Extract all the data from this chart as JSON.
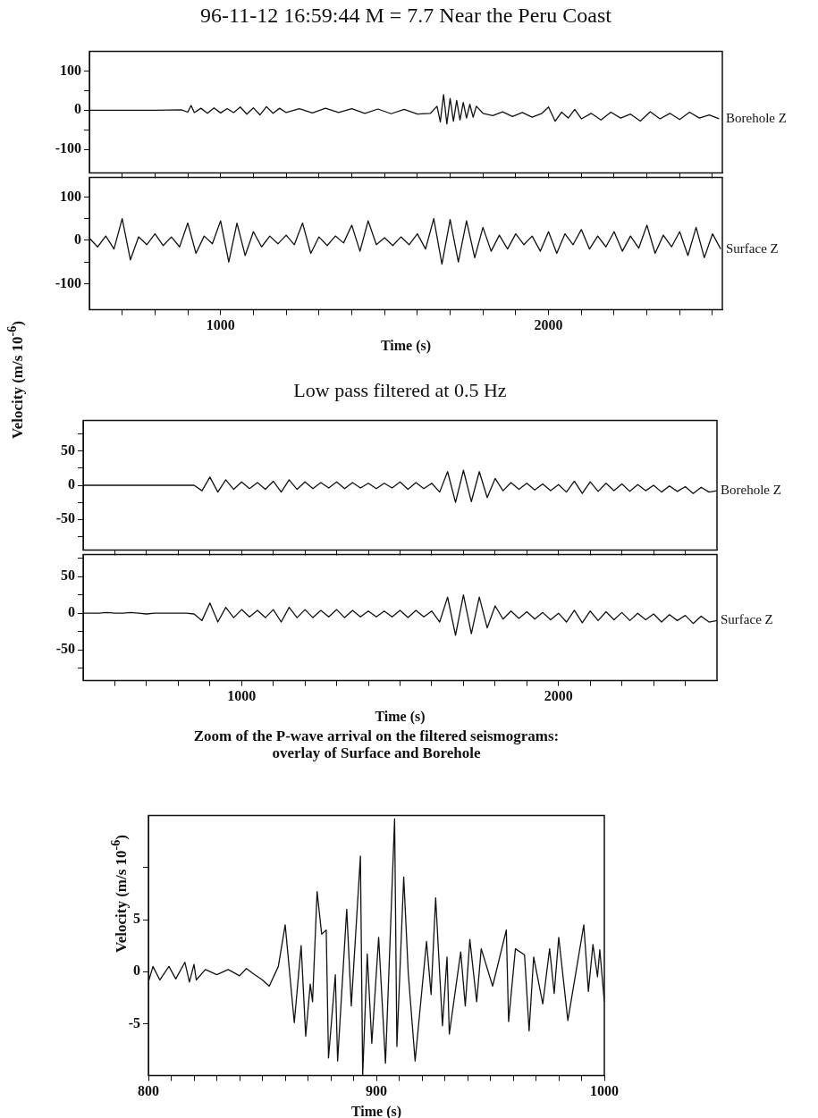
{
  "chart_data": [
    {
      "type": "line",
      "title": "96-11-12 16:59:44 M = 7.7 Near the Peru Coast",
      "grid": false,
      "legend": false,
      "tick_labels": "y",
      "xlim": [
        600,
        2530
      ],
      "ylim": [
        -160,
        150
      ],
      "xticks": [
        {
          "value": 700,
          "label": null
        },
        {
          "value": 800,
          "label": null
        },
        {
          "value": 900,
          "label": null
        },
        {
          "value": 1000,
          "label": null
        },
        {
          "value": 1100,
          "label": null
        },
        {
          "value": 1200,
          "label": null
        },
        {
          "value": 1300,
          "label": null
        },
        {
          "value": 1400,
          "label": null
        },
        {
          "value": 1500,
          "label": null
        },
        {
          "value": 1600,
          "label": null
        },
        {
          "value": 1700,
          "label": null
        },
        {
          "value": 1800,
          "label": null
        },
        {
          "value": 1900,
          "label": null
        },
        {
          "value": 2000,
          "label": null
        },
        {
          "value": 2100,
          "label": null
        },
        {
          "value": 2200,
          "label": null
        },
        {
          "value": 2300,
          "label": null
        },
        {
          "value": 2400,
          "label": null
        },
        {
          "value": 2500,
          "label": null
        }
      ],
      "yticks": [
        -100,
        {
          "value": -50,
          "label": null
        },
        0,
        {
          "value": 50,
          "label": null
        },
        100
      ],
      "x": [
        600,
        700,
        800,
        880,
        900,
        910,
        920,
        940,
        960,
        980,
        1000,
        1020,
        1040,
        1060,
        1080,
        1100,
        1120,
        1140,
        1160,
        1180,
        1200,
        1240,
        1280,
        1320,
        1360,
        1400,
        1440,
        1480,
        1520,
        1560,
        1600,
        1640,
        1660,
        1670,
        1680,
        1690,
        1700,
        1710,
        1720,
        1730,
        1740,
        1750,
        1760,
        1770,
        1780,
        1800,
        1830,
        1860,
        1890,
        1920,
        1950,
        1980,
        2000,
        2020,
        2040,
        2060,
        2080,
        2100,
        2130,
        2160,
        2190,
        2220,
        2250,
        2280,
        2310,
        2340,
        2370,
        2400,
        2430,
        2460,
        2490,
        2520
      ],
      "series": [
        {
          "name": "Borehole Z",
          "color": "#111111",
          "values": [
            0,
            0,
            0,
            1,
            -5,
            12,
            -6,
            5,
            -8,
            6,
            -7,
            4,
            -6,
            8,
            -10,
            6,
            -12,
            9,
            -8,
            5,
            -6,
            4,
            -7,
            5,
            -6,
            4,
            -8,
            3,
            -9,
            2,
            -10,
            -8,
            10,
            -30,
            40,
            -35,
            30,
            -28,
            25,
            -25,
            20,
            -20,
            15,
            -18,
            10,
            -8,
            -14,
            -4,
            -16,
            -6,
            -18,
            -8,
            8,
            -28,
            -5,
            -20,
            2,
            -22,
            -8,
            -25,
            -5,
            -20,
            -10,
            -28,
            -4,
            -22,
            -8,
            -24,
            -5,
            -20,
            -12,
            -22
          ]
        }
      ]
    },
    {
      "type": "line",
      "xlabel": "Time (s)",
      "grid": false,
      "legend": false,
      "xlim": [
        600,
        2530
      ],
      "ylim": [
        -160,
        145
      ],
      "xticks": [
        {
          "value": 700,
          "label": null
        },
        {
          "value": 800,
          "label": null
        },
        {
          "value": 900,
          "label": null
        },
        1000,
        {
          "value": 1100,
          "label": null
        },
        {
          "value": 1200,
          "label": null
        },
        {
          "value": 1300,
          "label": null
        },
        {
          "value": 1400,
          "label": null
        },
        {
          "value": 1500,
          "label": null
        },
        {
          "value": 1600,
          "label": null
        },
        {
          "value": 1700,
          "label": null
        },
        {
          "value": 1800,
          "label": null
        },
        {
          "value": 1900,
          "label": null
        },
        2000,
        {
          "value": 2100,
          "label": null
        },
        {
          "value": 2200,
          "label": null
        },
        {
          "value": 2300,
          "label": null
        },
        {
          "value": 2400,
          "label": null
        },
        {
          "value": 2500,
          "label": null
        }
      ],
      "yticks": [
        -100,
        {
          "value": -50,
          "label": null
        },
        0,
        {
          "value": 50,
          "label": null
        },
        100
      ],
      "x": [
        600,
        625,
        650,
        675,
        700,
        725,
        750,
        775,
        800,
        825,
        850,
        875,
        900,
        925,
        950,
        975,
        1000,
        1025,
        1050,
        1075,
        1100,
        1125,
        1150,
        1175,
        1200,
        1225,
        1250,
        1275,
        1300,
        1325,
        1350,
        1375,
        1400,
        1425,
        1450,
        1475,
        1500,
        1525,
        1550,
        1575,
        1600,
        1625,
        1650,
        1675,
        1700,
        1725,
        1750,
        1775,
        1800,
        1825,
        1850,
        1875,
        1900,
        1925,
        1950,
        1975,
        2000,
        2025,
        2050,
        2075,
        2100,
        2125,
        2150,
        2175,
        2200,
        2225,
        2250,
        2275,
        2300,
        2325,
        2350,
        2375,
        2400,
        2425,
        2450,
        2475,
        2500,
        2525
      ],
      "series": [
        {
          "name": "Surface Z",
          "color": "#111111",
          "values": [
            5,
            -15,
            10,
            -20,
            50,
            -45,
            8,
            -10,
            15,
            -12,
            8,
            -15,
            40,
            -30,
            10,
            -8,
            45,
            -50,
            40,
            -35,
            20,
            -15,
            10,
            -8,
            12,
            -10,
            40,
            -30,
            8,
            -12,
            10,
            -6,
            35,
            -25,
            45,
            -10,
            6,
            -12,
            8,
            -10,
            15,
            -20,
            50,
            -55,
            48,
            -50,
            45,
            -40,
            30,
            -25,
            12,
            -20,
            15,
            -10,
            10,
            -25,
            20,
            -30,
            15,
            -10,
            25,
            -20,
            10,
            -15,
            20,
            -25,
            10,
            -18,
            35,
            -30,
            12,
            -15,
            20,
            -35,
            30,
            -40,
            15,
            -20
          ]
        }
      ]
    },
    {
      "type": "line",
      "title": "Low pass filtered at 0.5 Hz",
      "ylabel": "Velocity (m/s 10$^{-6}$)",
      "grid": false,
      "legend": false,
      "tick_labels": "y",
      "xlim": [
        500,
        2500
      ],
      "ylim": [
        -95,
        95
      ],
      "xticks": [
        {
          "value": 600,
          "label": null
        },
        {
          "value": 700,
          "label": null
        },
        {
          "value": 800,
          "label": null
        },
        {
          "value": 900,
          "label": null
        },
        {
          "value": 1000,
          "label": null
        },
        {
          "value": 1100,
          "label": null
        },
        {
          "value": 1200,
          "label": null
        },
        {
          "value": 1300,
          "label": null
        },
        {
          "value": 1400,
          "label": null
        },
        {
          "value": 1500,
          "label": null
        },
        {
          "value": 1600,
          "label": null
        },
        {
          "value": 1700,
          "label": null
        },
        {
          "value": 1800,
          "label": null
        },
        {
          "value": 1900,
          "label": null
        },
        {
          "value": 2000,
          "label": null
        },
        {
          "value": 2100,
          "label": null
        },
        {
          "value": 2200,
          "label": null
        },
        {
          "value": 2300,
          "label": null
        },
        {
          "value": 2400,
          "label": null
        }
      ],
      "yticks": [
        {
          "value": -75,
          "label": null
        },
        -50,
        {
          "value": -25,
          "label": null
        },
        0,
        {
          "value": 25,
          "label": null
        },
        50,
        {
          "value": 75,
          "label": null
        }
      ],
      "x": [
        500,
        525,
        550,
        575,
        600,
        625,
        650,
        675,
        700,
        725,
        750,
        775,
        800,
        825,
        850,
        875,
        900,
        925,
        950,
        975,
        1000,
        1025,
        1050,
        1075,
        1100,
        1125,
        1150,
        1175,
        1200,
        1225,
        1250,
        1275,
        1300,
        1325,
        1350,
        1375,
        1400,
        1425,
        1450,
        1475,
        1500,
        1525,
        1550,
        1575,
        1600,
        1625,
        1650,
        1675,
        1700,
        1725,
        1750,
        1775,
        1800,
        1825,
        1850,
        1875,
        1900,
        1925,
        1950,
        1975,
        2000,
        2025,
        2050,
        2075,
        2100,
        2125,
        2150,
        2175,
        2200,
        2225,
        2250,
        2275,
        2300,
        2325,
        2350,
        2375,
        2400,
        2425,
        2450,
        2475,
        2500
      ],
      "series": [
        {
          "name": "Borehole Z",
          "color": "#111111",
          "values": [
            0,
            0,
            0,
            0,
            0,
            0,
            0,
            0,
            0,
            0,
            0,
            0,
            0,
            0,
            0,
            -8,
            12,
            -10,
            8,
            -6,
            5,
            -5,
            4,
            -6,
            6,
            -10,
            8,
            -6,
            5,
            -5,
            4,
            -4,
            5,
            -5,
            4,
            -4,
            3,
            -5,
            3,
            -4,
            5,
            -6,
            4,
            -5,
            3,
            -10,
            20,
            -25,
            22,
            -24,
            20,
            -18,
            10,
            -8,
            4,
            -6,
            3,
            -7,
            2,
            -8,
            1,
            -10,
            6,
            -12,
            5,
            -9,
            3,
            -8,
            2,
            -9,
            1,
            -8,
            0,
            -10,
            -1,
            -9,
            -2,
            -12,
            -3,
            -10,
            -8
          ]
        }
      ]
    },
    {
      "type": "line",
      "xlabel": "Time (s)",
      "grid": false,
      "legend": false,
      "xlim": [
        500,
        2500
      ],
      "ylim": [
        -92,
        80
      ],
      "xticks": [
        {
          "value": 600,
          "label": null
        },
        {
          "value": 700,
          "label": null
        },
        {
          "value": 800,
          "label": null
        },
        {
          "value": 900,
          "label": null
        },
        1000,
        {
          "value": 1100,
          "label": null
        },
        {
          "value": 1200,
          "label": null
        },
        {
          "value": 1300,
          "label": null
        },
        {
          "value": 1400,
          "label": null
        },
        {
          "value": 1500,
          "label": null
        },
        {
          "value": 1600,
          "label": null
        },
        {
          "value": 1700,
          "label": null
        },
        {
          "value": 1800,
          "label": null
        },
        {
          "value": 1900,
          "label": null
        },
        2000,
        {
          "value": 2100,
          "label": null
        },
        {
          "value": 2200,
          "label": null
        },
        {
          "value": 2300,
          "label": null
        },
        {
          "value": 2400,
          "label": null
        }
      ],
      "yticks": [
        {
          "value": -75,
          "label": null
        },
        -50,
        {
          "value": -25,
          "label": null
        },
        0,
        {
          "value": 25,
          "label": null
        },
        50,
        {
          "value": 75,
          "label": null
        }
      ],
      "x": [
        500,
        525,
        550,
        575,
        600,
        625,
        650,
        675,
        700,
        725,
        750,
        775,
        800,
        825,
        850,
        875,
        900,
        925,
        950,
        975,
        1000,
        1025,
        1050,
        1075,
        1100,
        1125,
        1150,
        1175,
        1200,
        1225,
        1250,
        1275,
        1300,
        1325,
        1350,
        1375,
        1400,
        1425,
        1450,
        1475,
        1500,
        1525,
        1550,
        1575,
        1600,
        1625,
        1650,
        1675,
        1700,
        1725,
        1750,
        1775,
        1800,
        1825,
        1850,
        1875,
        1900,
        1925,
        1950,
        1975,
        2000,
        2025,
        2050,
        2075,
        2100,
        2125,
        2150,
        2175,
        2200,
        2225,
        2250,
        2275,
        2300,
        2325,
        2350,
        2375,
        2400,
        2425,
        2450,
        2475,
        2500
      ],
      "series": [
        {
          "name": "Surface Z",
          "color": "#111111",
          "values": [
            0,
            0,
            0,
            1,
            0,
            0,
            1,
            0,
            -1,
            0,
            0,
            0,
            0,
            0,
            -1,
            -10,
            14,
            -12,
            8,
            -6,
            5,
            -5,
            4,
            -6,
            5,
            -12,
            8,
            -6,
            5,
            -6,
            4,
            -5,
            5,
            -6,
            4,
            -5,
            3,
            -5,
            3,
            -5,
            4,
            -6,
            4,
            -5,
            3,
            -12,
            22,
            -30,
            25,
            -28,
            22,
            -20,
            10,
            -8,
            3,
            -7,
            2,
            -8,
            1,
            -9,
            0,
            -12,
            4,
            -13,
            3,
            -10,
            2,
            -9,
            1,
            -10,
            0,
            -9,
            -1,
            -12,
            -2,
            -10,
            -3,
            -14,
            -4,
            -12,
            -10
          ]
        }
      ]
    },
    {
      "type": "line",
      "title": "Zoom of the P-wave arrival on the  filtered seismograms:",
      "subtitle": "overlay of Surface and Borehole",
      "xlabel": "Time (s)",
      "ylabel": "Velocity (m/s 10$^{-6}$)",
      "grid": false,
      "legend": false,
      "xlim": [
        800,
        1000
      ],
      "ylim": [
        -10,
        15
      ],
      "xticks": [
        800,
        {
          "value": 810,
          "label": null
        },
        {
          "value": 820,
          "label": null
        },
        {
          "value": 830,
          "label": null
        },
        {
          "value": 840,
          "label": null
        },
        {
          "value": 850,
          "label": null
        },
        {
          "value": 860,
          "label": null
        },
        {
          "value": 870,
          "label": null
        },
        {
          "value": 880,
          "label": null
        },
        {
          "value": 890,
          "label": null
        },
        900,
        {
          "value": 910,
          "label": null
        },
        {
          "value": 920,
          "label": null
        },
        {
          "value": 930,
          "label": null
        },
        {
          "value": 940,
          "label": null
        },
        {
          "value": 950,
          "label": null
        },
        {
          "value": 960,
          "label": null
        },
        {
          "value": 970,
          "label": null
        },
        {
          "value": 980,
          "label": null
        },
        {
          "value": 990,
          "label": null
        },
        1000
      ],
      "yticks": [
        -5,
        0,
        5,
        {
          "value": 10,
          "label": null
        }
      ],
      "x": [
        800,
        802,
        805,
        809,
        812,
        816,
        818,
        820,
        821,
        825,
        830,
        835,
        840,
        843,
        846,
        850,
        853,
        857,
        860,
        864,
        867,
        869,
        871,
        872,
        874,
        876,
        878,
        879,
        882,
        883,
        887,
        889,
        893,
        894,
        896,
        898,
        901,
        904,
        908,
        909,
        912,
        914,
        917,
        922,
        924,
        926,
        929,
        931,
        932,
        937,
        939,
        941,
        944,
        946,
        951,
        957,
        958,
        961,
        965,
        967,
        969,
        973,
        976,
        978,
        980,
        984,
        991,
        993,
        995,
        997,
        998,
        1000
      ],
      "series": [
        {
          "color": "#111111",
          "values": [
            -1,
            0.5,
            -0.8,
            0.5,
            -0.7,
            0.9,
            -1,
            0.7,
            -0.8,
            0.2,
            -0.3,
            0.2,
            -0.4,
            0.3,
            -0.2,
            -0.8,
            -1.4,
            0.5,
            4.5,
            -4.9,
            2.5,
            -6.2,
            -1.2,
            -2.9,
            7.7,
            3.6,
            4,
            -8.3,
            -0.3,
            -8.6,
            6,
            -3.3,
            11.1,
            -10,
            1.7,
            -6.9,
            3.3,
            -8.8,
            14.7,
            -7.2,
            9.1,
            -0.2,
            -8.6,
            2.9,
            -2.2,
            7.1,
            -5.2,
            1.4,
            -6,
            1.9,
            -3.3,
            3.1,
            -2.9,
            2.2,
            -1.4,
            4,
            -4.8,
            2.2,
            1.6,
            -5.7,
            1.4,
            -3.1,
            2.2,
            -2.1,
            3.3,
            -4.7,
            4.5,
            -1.9,
            2.6,
            -0.5,
            2.1,
            -2.9
          ]
        }
      ]
    }
  ]
}
